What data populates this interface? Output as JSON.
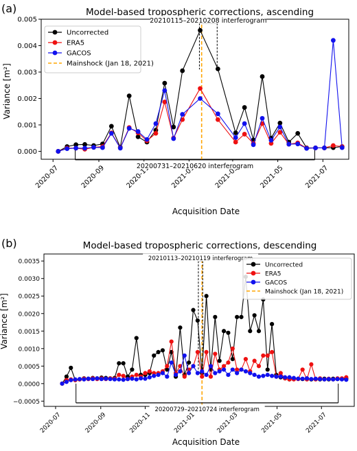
{
  "chart_data": [
    {
      "type": "line",
      "panel_label": "(a)",
      "title": "Model-based tropospheric corrections, ascending",
      "xlabel": "Acquisition Date",
      "ylabel": "Variance [m²]",
      "xlim": [
        "2020-06-15",
        "2021-08-05"
      ],
      "ylim": [
        -0.0003,
        0.005
      ],
      "x_ticks": [
        "2020-07",
        "2020-09",
        "2020-11",
        "2021-01",
        "2021-03",
        "2021-05",
        "2021-07"
      ],
      "y_ticks": [
        0.0,
        0.001,
        0.002,
        0.003,
        0.004,
        0.005
      ],
      "y_tick_labels": [
        "0.000",
        "0.001",
        "0.002",
        "0.003",
        "0.004",
        "0.005"
      ],
      "legend_position": "top-left",
      "mainshock": {
        "date": "2021-01-18",
        "label": "Mainshock (Jan 18, 2021)",
        "color": "#ffa500"
      },
      "interferograms": [
        {
          "label": "20210115–20210208 interferogram",
          "start": "2021-01-15",
          "end": "2021-02-08",
          "y": 0.00485,
          "base": 0.0031,
          "position": "top"
        },
        {
          "label": "20200731–20210620 interferogram",
          "start": "2020-07-31",
          "end": "2021-06-20",
          "y": -0.00032,
          "base": 0.00013,
          "position": "bottom"
        }
      ],
      "x": [
        "2020-07-08",
        "2020-07-20",
        "2020-08-01",
        "2020-08-13",
        "2020-08-25",
        "2020-09-06",
        "2020-09-18",
        "2020-09-30",
        "2020-10-12",
        "2020-10-24",
        "2020-11-05",
        "2020-11-17",
        "2020-11-29",
        "2020-12-11",
        "2020-12-23",
        "2021-01-16",
        "2021-02-09",
        "2021-03-05",
        "2021-03-17",
        "2021-03-29",
        "2021-04-10",
        "2021-04-22",
        "2021-05-04",
        "2021-05-16",
        "2021-05-28",
        "2021-06-09",
        "2021-06-21",
        "2021-07-03",
        "2021-07-15",
        "2021-07-27"
      ],
      "series": [
        {
          "name": "Uncorrected",
          "color": "#000000",
          "values": [
            0.0,
            0.00018,
            0.00025,
            0.00026,
            0.00022,
            0.00028,
            0.00095,
            0.00015,
            0.0021,
            0.00055,
            0.00035,
            0.0008,
            0.00258,
            0.00092,
            0.00305,
            0.00458,
            0.00312,
            0.0007,
            0.00166,
            0.00043,
            0.00283,
            0.0005,
            0.00107,
            0.00035,
            0.00068,
            0.00013,
            0.00013,
            0.00013,
            0.00014,
            0.00018
          ]
        },
        {
          "name": "ERA5",
          "color": "#ee1111",
          "values": [
            0.0,
            0.00012,
            0.00012,
            8e-05,
            0.00015,
            0.00018,
            0.0007,
            0.00013,
            0.0009,
            0.0007,
            0.0004,
            0.00068,
            0.00187,
            0.0005,
            0.0012,
            0.00238,
            0.0012,
            0.00035,
            0.00065,
            0.0003,
            0.00105,
            0.0003,
            0.00072,
            0.00027,
            0.00032,
            0.00012,
            0.00013,
            0.00013,
            0.00022,
            0.00018
          ]
        },
        {
          "name": "GACOS",
          "color": "#1111ee",
          "values": [
            0.0,
            0.0001,
            0.00012,
            0.00012,
            0.00015,
            0.00014,
            0.00068,
            0.00012,
            0.00087,
            0.00075,
            0.00045,
            0.00105,
            0.0023,
            0.00048,
            0.0014,
            0.002,
            0.00142,
            0.00052,
            0.00105,
            0.00025,
            0.00125,
            0.00042,
            0.00092,
            0.00027,
            0.00028,
            0.00011,
            0.00013,
            0.00013,
            0.0042,
            0.00014
          ]
        }
      ]
    },
    {
      "type": "line",
      "panel_label": "(b)",
      "title": "Model-based tropospheric corrections, descending",
      "xlabel": "Acquisition Date",
      "ylabel": "Variance [m²]",
      "xlim": [
        "2020-06-15",
        "2021-08-15"
      ],
      "ylim": [
        -0.00065,
        0.0037
      ],
      "x_ticks": [
        "2020-07",
        "2020-09",
        "2020-11",
        "2021-01",
        "2021-03",
        "2021-05",
        "2021-07"
      ],
      "y_ticks": [
        -0.0005,
        0.0,
        0.0005,
        0.001,
        0.0015,
        0.002,
        0.0025,
        0.003,
        0.0035
      ],
      "y_tick_labels": [
        "−0.0005",
        "0.0000",
        "0.0005",
        "0.0010",
        "0.0015",
        "0.0020",
        "0.0025",
        "0.0030",
        "0.0035"
      ],
      "legend_position": "top-right",
      "mainshock": {
        "date": "2021-01-18",
        "label": "Mainshock (Jan 18, 2021)",
        "color": "#ffa500"
      },
      "interferograms": [
        {
          "label": "20210113–20210119 interferogram",
          "start": "2021-01-13",
          "end": "2021-01-19",
          "y": 0.0035,
          "base": 0.0003,
          "position": "top"
        },
        {
          "label": "20200729–20210724 interferogram",
          "start": "2020-07-29",
          "end": "2021-07-24",
          "y": -0.00055,
          "base": 0.0,
          "position": "bottom"
        }
      ],
      "x": [
        "2020-07-10",
        "2020-07-16",
        "2020-07-22",
        "2020-07-28",
        "2020-08-03",
        "2020-08-09",
        "2020-08-15",
        "2020-08-21",
        "2020-08-27",
        "2020-09-02",
        "2020-09-08",
        "2020-09-14",
        "2020-09-20",
        "2020-09-26",
        "2020-10-02",
        "2020-10-08",
        "2020-10-14",
        "2020-10-20",
        "2020-10-26",
        "2020-11-01",
        "2020-11-07",
        "2020-11-13",
        "2020-11-19",
        "2020-11-25",
        "2020-12-01",
        "2020-12-07",
        "2020-12-13",
        "2020-12-19",
        "2020-12-25",
        "2020-12-31",
        "2021-01-06",
        "2021-01-12",
        "2021-01-18",
        "2021-01-24",
        "2021-01-30",
        "2021-02-05",
        "2021-02-11",
        "2021-02-17",
        "2021-02-23",
        "2021-03-01",
        "2021-03-07",
        "2021-03-13",
        "2021-03-19",
        "2021-03-25",
        "2021-03-31",
        "2021-04-06",
        "2021-04-12",
        "2021-04-18",
        "2021-04-24",
        "2021-04-30",
        "2021-05-06",
        "2021-05-12",
        "2021-05-18",
        "2021-05-24",
        "2021-05-30",
        "2021-06-05",
        "2021-06-11",
        "2021-06-17",
        "2021-06-23",
        "2021-06-29",
        "2021-07-05",
        "2021-07-11",
        "2021-07-17",
        "2021-07-23",
        "2021-07-29",
        "2021-08-04"
      ],
      "series": [
        {
          "name": "Uncorrected",
          "color": "#000000",
          "values": [
            0.0,
            0.0002,
            0.00045,
            0.0001,
            0.00012,
            0.00015,
            0.00014,
            0.00016,
            0.00015,
            0.00017,
            0.00016,
            0.00015,
            0.00016,
            0.00058,
            0.00058,
            0.0002,
            0.0004,
            0.0013,
            0.00025,
            0.00025,
            0.0003,
            0.0008,
            0.0009,
            0.00095,
            0.0004,
            0.0009,
            0.0002,
            0.0016,
            0.00025,
            0.0006,
            0.0021,
            0.0018,
            0.0003,
            0.0025,
            0.0004,
            0.0019,
            0.00065,
            0.0015,
            0.00145,
            0.0007,
            0.0019,
            0.0019,
            0.00305,
            0.0015,
            0.00195,
            0.0015,
            0.0024,
            0.0004,
            0.0017,
            0.00025,
            0.00018,
            0.00015,
            0.00012,
            0.00015,
            0.00014,
            0.00013,
            0.00015,
            0.00012,
            0.00013,
            0.00012,
            0.00014,
            0.00012,
            0.00014,
            0.00013,
            0.00013,
            0.00014
          ]
        },
        {
          "name": "ERA5",
          "color": "#ee1111",
          "values": [
            0.0,
            0.0001,
            0.00012,
            0.0001,
            0.00012,
            0.00014,
            0.00013,
            0.00015,
            0.00013,
            0.00015,
            0.00013,
            0.00015,
            0.00014,
            0.00025,
            0.00022,
            0.00013,
            0.0002,
            0.00025,
            0.0002,
            0.0003,
            0.00035,
            0.0003,
            0.0003,
            0.00035,
            0.0005,
            0.0012,
            0.0003,
            0.0005,
            0.0002,
            0.0004,
            0.0005,
            0.0009,
            0.0002,
            0.0009,
            0.0002,
            0.00085,
            0.0004,
            0.0005,
            0.0006,
            0.001,
            0.0004,
            0.0004,
            0.0007,
            0.00035,
            0.00065,
            0.0005,
            0.0008,
            0.0008,
            0.0009,
            0.0002,
            0.0003,
            0.00015,
            0.00012,
            0.00012,
            0.00013,
            0.0004,
            0.00012,
            0.00055,
            0.00012,
            0.00015,
            0.00012,
            0.00014,
            0.00012,
            0.00015,
            0.00015,
            0.00018
          ]
        },
        {
          "name": "GACOS",
          "color": "#1111ee",
          "values": [
            0.0,
            5e-05,
            0.0001,
            0.00012,
            0.00013,
            0.00012,
            0.00014,
            0.00013,
            0.00015,
            0.00013,
            0.00014,
            0.00013,
            0.00012,
            0.00012,
            0.00011,
            0.00013,
            0.00014,
            0.00012,
            0.00015,
            0.00014,
            0.00018,
            0.00022,
            0.00025,
            0.0003,
            0.0002,
            0.0006,
            0.00025,
            0.00035,
            0.0008,
            0.0003,
            0.0005,
            0.0003,
            0.00035,
            0.00025,
            0.0005,
            0.0003,
            0.00035,
            0.0004,
            0.00025,
            0.0004,
            0.0003,
            0.0004,
            0.00035,
            0.0003,
            0.00025,
            0.0002,
            0.00022,
            0.00025,
            0.00022,
            0.0002,
            0.0002,
            0.00018,
            0.00018,
            0.00016,
            0.00014,
            0.00014,
            0.00015,
            0.00013,
            0.00014,
            0.00013,
            0.00012,
            0.00013,
            0.00012,
            0.00013,
            0.00012,
            0.00011
          ]
        }
      ]
    }
  ]
}
